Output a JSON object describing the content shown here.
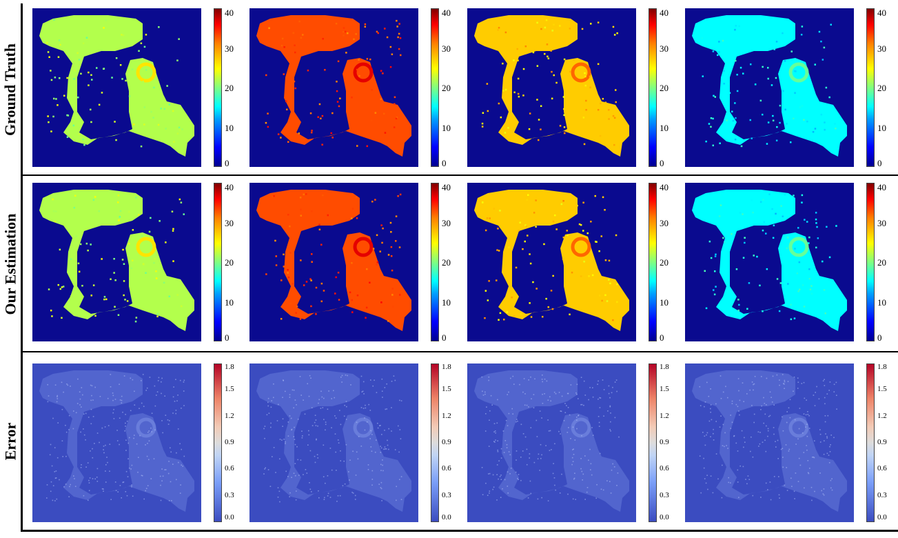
{
  "figure": {
    "rows": [
      {
        "label": "Ground Truth",
        "kind": "value"
      },
      {
        "label": "Our Estimation",
        "kind": "value"
      },
      {
        "label": "Error",
        "kind": "error"
      }
    ],
    "value_colorbar": {
      "ticks": [
        "40",
        "30",
        "20",
        "10",
        "0"
      ],
      "colormap": "jet",
      "range": [
        0,
        40
      ]
    },
    "error_colorbar": {
      "ticks": [
        "1.8",
        "1.5",
        "1.2",
        "0.9",
        "0.6",
        "0.3",
        "0.0"
      ],
      "colormap": "coolwarm",
      "range": [
        0,
        1.8
      ]
    },
    "colors": {
      "background_value": "#0a0a8f",
      "background_error": "#3b4cc0",
      "error_speckle": "#7f96e8"
    }
  },
  "chart_data": {
    "type": "heatmap",
    "layout": "3 rows x 4 columns of spatial maps",
    "row_labels": [
      "Ground Truth",
      "Our Estimation",
      "Error"
    ],
    "value_scale": {
      "min": 0,
      "max": 40,
      "colormap": "jet"
    },
    "error_scale": {
      "min": 0.0,
      "max": 1.8,
      "colormap": "coolwarm"
    },
    "panels": [
      {
        "row": "Ground Truth",
        "column": 1,
        "approx_mean_value": 22
      },
      {
        "row": "Ground Truth",
        "column": 2,
        "approx_mean_value": 32
      },
      {
        "row": "Ground Truth",
        "column": 3,
        "approx_mean_value": 27
      },
      {
        "row": "Ground Truth",
        "column": 4,
        "approx_mean_value": 15
      },
      {
        "row": "Our Estimation",
        "column": 1,
        "approx_mean_value": 22
      },
      {
        "row": "Our Estimation",
        "column": 2,
        "approx_mean_value": 32
      },
      {
        "row": "Our Estimation",
        "column": 3,
        "approx_mean_value": 27
      },
      {
        "row": "Our Estimation",
        "column": 4,
        "approx_mean_value": 15
      },
      {
        "row": "Error",
        "column": 1,
        "approx_mean_value": 0.1
      },
      {
        "row": "Error",
        "column": 2,
        "approx_mean_value": 0.1
      },
      {
        "row": "Error",
        "column": 3,
        "approx_mean_value": 0.1
      },
      {
        "row": "Error",
        "column": 4,
        "approx_mean_value": 0.1
      }
    ]
  }
}
